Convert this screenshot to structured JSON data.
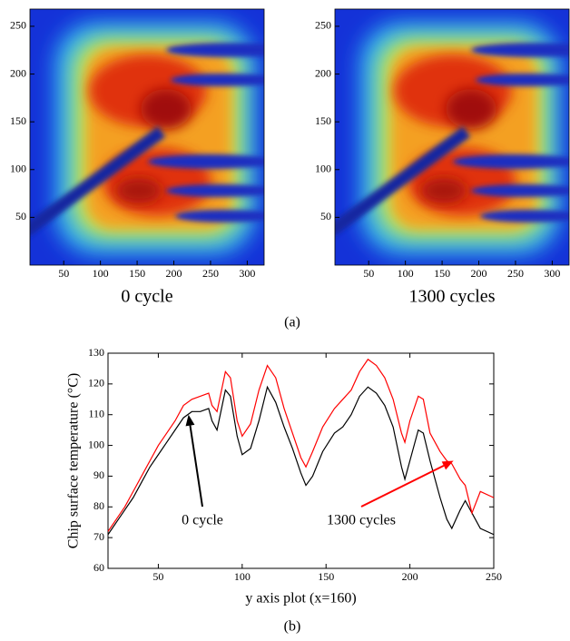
{
  "chart_data": [
    {
      "type": "heatmap",
      "xlabel": "0 cycle",
      "xlim": [
        4,
        323
      ],
      "ylim": [
        0,
        268
      ],
      "xticks": [
        50,
        100,
        150,
        200,
        250,
        300
      ],
      "yticks": [
        50,
        100,
        150,
        200,
        250
      ]
    },
    {
      "type": "heatmap",
      "xlabel": "1300 cycles",
      "xlim": [
        4,
        323
      ],
      "ylim": [
        0,
        268
      ],
      "xticks": [
        50,
        100,
        150,
        200,
        250,
        300
      ],
      "yticks": [
        50,
        100,
        150,
        200,
        250
      ]
    },
    {
      "type": "line",
      "xlabel": "y axis plot (x=160)",
      "ylabel": "Chip surface temperature (°C)",
      "xlim": [
        20,
        250
      ],
      "ylim": [
        60,
        130
      ],
      "xticks": [
        50,
        100,
        150,
        200,
        250
      ],
      "yticks": [
        60,
        70,
        80,
        90,
        100,
        110,
        120,
        130
      ],
      "x": [
        20,
        25,
        30,
        35,
        40,
        45,
        50,
        55,
        60,
        65,
        70,
        75,
        80,
        82,
        85,
        90,
        93,
        97,
        100,
        105,
        110,
        115,
        120,
        125,
        130,
        135,
        138,
        142,
        148,
        155,
        160,
        165,
        170,
        175,
        180,
        185,
        190,
        195,
        197,
        200,
        205,
        208,
        212,
        218,
        222,
        225,
        230,
        233,
        237,
        242,
        250
      ],
      "series": [
        {
          "name": "0 cycle",
          "color": "#000000",
          "values": [
            71,
            75,
            79,
            83,
            88,
            93,
            97,
            101,
            105,
            109,
            111,
            111,
            112,
            108,
            105,
            118,
            116,
            103,
            97,
            99,
            108,
            119,
            114,
            106,
            99,
            91,
            87,
            90,
            98,
            104,
            106,
            110,
            116,
            119,
            117,
            113,
            106,
            93,
            89,
            95,
            105,
            104,
            95,
            83,
            76,
            73,
            79,
            82,
            78,
            73,
            71
          ]
        },
        {
          "name": "1300 cycles",
          "color": "#ff0000",
          "values": [
            72,
            76,
            80,
            85,
            90,
            95,
            100,
            104,
            108,
            113,
            115,
            116,
            117,
            113,
            111,
            124,
            122,
            108,
            103,
            107,
            118,
            126,
            122,
            112,
            104,
            96,
            93,
            98,
            106,
            112,
            115,
            118,
            124,
            128,
            126,
            122,
            115,
            104,
            101,
            108,
            116,
            115,
            104,
            98,
            95,
            94,
            89,
            87,
            78,
            85,
            83
          ]
        }
      ],
      "annotations": [
        {
          "text": "0 cycle",
          "xy": [
            68,
            110
          ],
          "color": "#000000"
        },
        {
          "text": "1300 cycles",
          "xy": [
            226,
            95
          ],
          "color": "#ff0000"
        }
      ]
    }
  ],
  "captions": [
    "(a)",
    "(b)"
  ]
}
